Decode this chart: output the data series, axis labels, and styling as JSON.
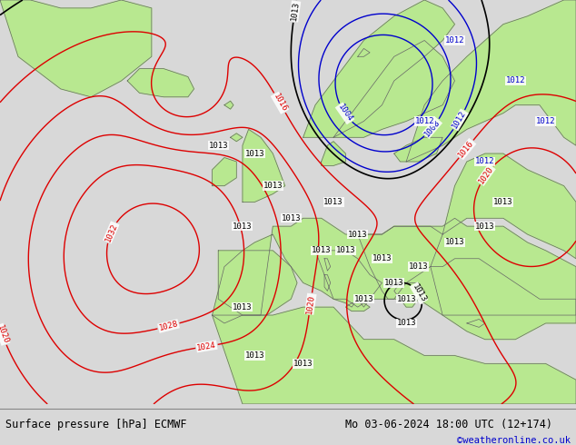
{
  "title_left": "Surface pressure [hPa] ECMWF",
  "title_right": "Mo 03-06-2024 18:00 UTC (12+174)",
  "credit": "©weatheronline.co.uk",
  "ocean_color": "#d8d8d8",
  "land_color": "#b8e890",
  "coast_color": "#888888",
  "land_border_color": "#666666",
  "red_color": "#dd0000",
  "blue_color": "#0000cc",
  "black_color": "#000000",
  "footer_bg": "#d8d8d8",
  "footer_line_color": "#888888",
  "footer_text_color": "#000000",
  "credit_color": "#0000cc",
  "fig_width": 6.34,
  "fig_height": 4.9,
  "map_lon_min": -45,
  "map_lon_max": 50,
  "map_lat_min": 25,
  "map_lat_max": 75
}
